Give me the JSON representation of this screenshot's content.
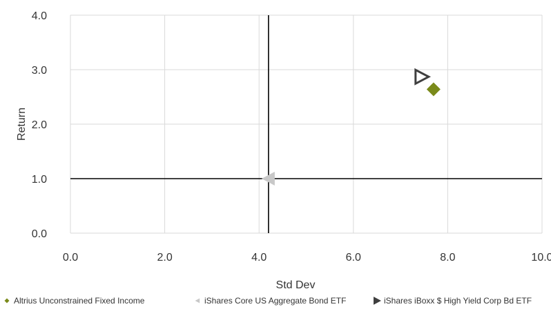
{
  "chart_data": {
    "type": "scatter",
    "title": "",
    "xlabel": "Std Dev",
    "ylabel": "Return",
    "xlim": [
      0,
      10
    ],
    "ylim": [
      0,
      4
    ],
    "x_ticks": [
      "0.0",
      "2.0",
      "4.0",
      "6.0",
      "8.0",
      "10.0"
    ],
    "y_ticks": [
      "0.0",
      "1.0",
      "2.0",
      "3.0",
      "4.0"
    ],
    "grid": true,
    "reference_lines": {
      "x": 4.2,
      "y": 1.0
    },
    "legend_position": "bottom",
    "series": [
      {
        "name": "Altrius Unconstrained Fixed Income",
        "marker": "diamond",
        "color": "#7a8a1a",
        "points": [
          {
            "x": 7.7,
            "y": 2.64
          }
        ]
      },
      {
        "name": "iShares Core US Aggregate Bond ETF",
        "marker": "triangle-left",
        "color": "#c8c8c8",
        "points": [
          {
            "x": 4.2,
            "y": 1.0
          }
        ]
      },
      {
        "name": "iShares iBoxx $ High Yield Corp Bd ETF",
        "marker": "triangle-right-open",
        "color": "#3f3f3f",
        "points": [
          {
            "x": 7.45,
            "y": 2.87
          }
        ]
      }
    ]
  }
}
